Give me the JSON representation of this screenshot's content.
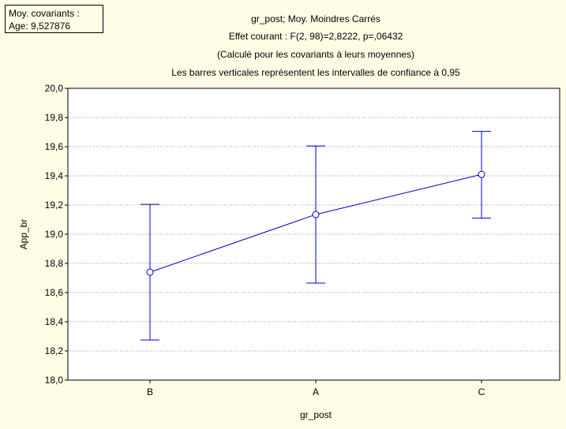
{
  "covariate_box": {
    "line1": "Moy. covariants :",
    "line2": "Age: 9,527876"
  },
  "chart_data": {
    "type": "line",
    "title_lines": [
      "gr_post; Moy. Moindres Carrés",
      "Effet courant : F(2, 98)=2,8222, p=,06432",
      "(Calculé pour les covariants à leurs moyennes)",
      "Les barres verticales représentent les intervalles de confiance à 0,95"
    ],
    "xlabel": "gr_post",
    "ylabel": "App_br",
    "categories": [
      "B",
      "A",
      "C"
    ],
    "values": [
      18.74,
      19.135,
      19.41
    ],
    "ci_lower": [
      18.275,
      18.665,
      19.11
    ],
    "ci_upper": [
      19.205,
      19.605,
      19.705
    ],
    "ylim": [
      18.0,
      20.0
    ],
    "yticks": [
      "18,0",
      "18,2",
      "18,4",
      "18,6",
      "18,8",
      "19,0",
      "19,2",
      "19,4",
      "19,6",
      "19,8",
      "20,0"
    ],
    "grid": true,
    "colors": {
      "series": "#0000cc",
      "background": "#fffde6",
      "plot": "#ffffff"
    }
  }
}
